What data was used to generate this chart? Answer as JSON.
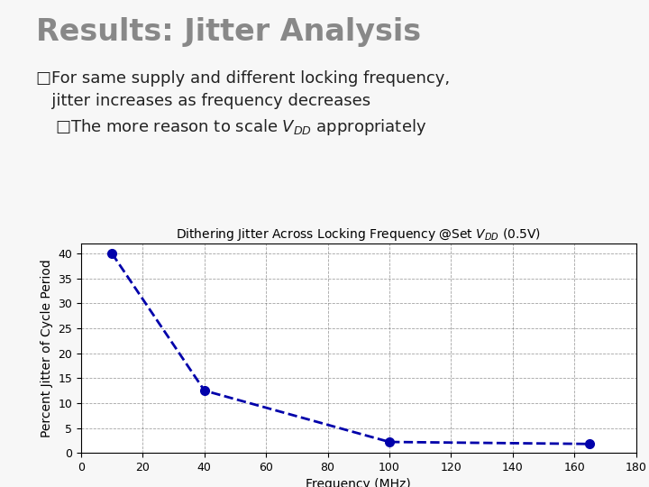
{
  "title": "Results: Jitter Analysis",
  "bullet1_line1": "□For same supply and different locking frequency,",
  "bullet1_line2": "   jitter increases as frequency decreases",
  "bullet2": "□The more reason to scale $V_{DD}$ appropriately",
  "chart_title": "Dithering Jitter Across Locking Frequency @Set $V_{DD}$ (0.5V)",
  "xlabel": "Frequency (MHz)",
  "ylabel": "Percent Jitter of Cycle Period",
  "x_data": [
    10,
    40,
    100,
    165
  ],
  "y_data": [
    40,
    12.5,
    2.2,
    1.8
  ],
  "xlim": [
    0,
    180
  ],
  "ylim": [
    0,
    42
  ],
  "xticks": [
    0,
    20,
    40,
    60,
    80,
    100,
    120,
    140,
    160,
    180
  ],
  "yticks": [
    0,
    5,
    10,
    15,
    20,
    25,
    30,
    35,
    40
  ],
  "line_color": "#0000AA",
  "marker_color": "#0000AA",
  "title_color": "#888888",
  "text_color": "#222222",
  "border_color": "#cccccc",
  "slide_bg": "#f7f7f7",
  "chart_bg": "#ffffff",
  "grid_color": "#666666",
  "title_fontsize": 24,
  "bullet_fontsize": 13,
  "chart_title_fontsize": 10,
  "axis_label_fontsize": 10,
  "tick_fontsize": 9
}
